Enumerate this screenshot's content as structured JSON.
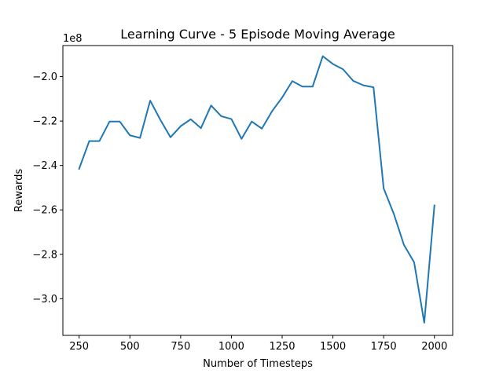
{
  "chart_data": {
    "type": "line",
    "title": "Learning Curve  - 5 Episode Moving Average",
    "xlabel": "Number of Timesteps",
    "ylabel": "Rewards",
    "y_offset_label": "1e8",
    "xlim": [
      170,
      2090
    ],
    "ylim": [
      -3.165,
      -1.86
    ],
    "x_ticks": [
      250,
      500,
      750,
      1000,
      1250,
      1500,
      1750,
      2000
    ],
    "y_ticks": [
      -3.0,
      -2.8,
      -2.6,
      -2.4,
      -2.2,
      -2.0
    ],
    "x_tick_labels": [
      "250",
      "500",
      "750",
      "1000",
      "1250",
      "1500",
      "1750",
      "2000"
    ],
    "y_tick_labels": [
      "−3.0",
      "−2.8",
      "−2.6",
      "−2.4",
      "−2.2",
      "−2.0"
    ],
    "grid": false,
    "series": [
      {
        "color": "#1f77b4",
        "x": [
          250,
          300,
          350,
          400,
          450,
          500,
          550,
          600,
          650,
          700,
          750,
          800,
          850,
          900,
          950,
          1000,
          1050,
          1100,
          1150,
          1200,
          1250,
          1300,
          1350,
          1400,
          1450,
          1500,
          1550,
          1600,
          1650,
          1700,
          1750,
          1800,
          1850,
          1900,
          1950,
          2000
        ],
        "values": [
          -2.415,
          -2.29,
          -2.29,
          -2.202,
          -2.202,
          -2.264,
          -2.276,
          -2.108,
          -2.194,
          -2.273,
          -2.223,
          -2.192,
          -2.232,
          -2.13,
          -2.178,
          -2.191,
          -2.28,
          -2.202,
          -2.234,
          -2.156,
          -2.094,
          -2.02,
          -2.045,
          -2.045,
          -1.908,
          -1.943,
          -1.967,
          -2.019,
          -2.039,
          -2.048,
          -2.503,
          -2.618,
          -2.758,
          -2.836,
          -3.108,
          -2.58
        ]
      }
    ]
  }
}
